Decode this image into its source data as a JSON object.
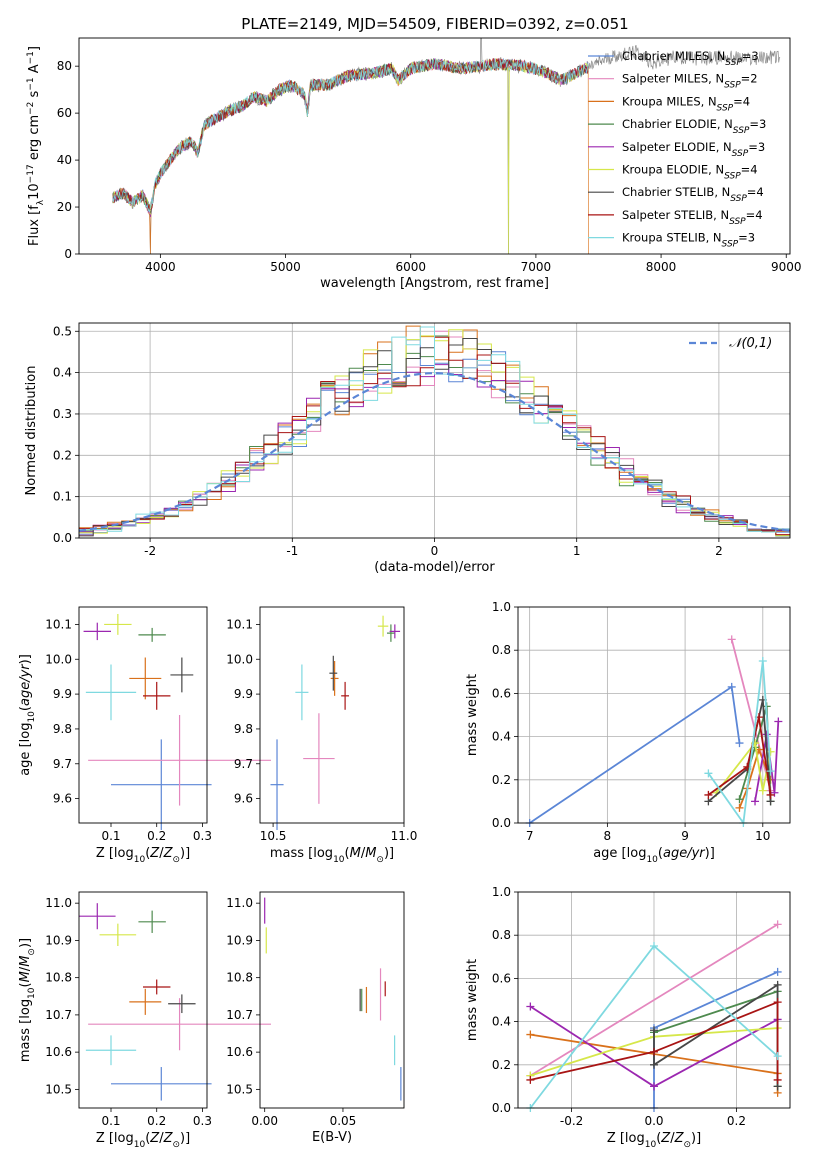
{
  "figure": {
    "title": "PLATE=2149, MJD=54509, FIBERID=0392, z=0.051",
    "colors": [
      "#5b86d6",
      "#e487be",
      "#d9711b",
      "#4e8a4e",
      "#9b27b0",
      "#d6e74a",
      "#474747",
      "#a81414",
      "#7fd9e0"
    ],
    "model_names": [
      "Chabrier MILES",
      "Salpeter MILES",
      "Kroupa MILES",
      "Chabrier ELODIE",
      "Salpeter ELODIE",
      "Kroupa ELODIE",
      "Chabrier STELIB",
      "Salpeter STELIB",
      "Kroupa STELIB"
    ],
    "nssp": [
      3,
      2,
      4,
      3,
      3,
      4,
      4,
      4,
      3
    ],
    "nssp_label": "N",
    "nssp_sub": "SSP"
  },
  "chart_data": [
    {
      "type": "line",
      "panel": "spectrum",
      "title": "PLATE=2149, MJD=54509, FIBERID=0392, z=0.051",
      "xlabel": "wavelength [Angstrom, rest frame]",
      "ylabel_parts": [
        "Flux [f",
        "λ",
        "10",
        "−17",
        " erg cm",
        "−2",
        " s",
        "−1",
        " A",
        "−1",
        "]"
      ],
      "xlim": [
        3350,
        9030
      ],
      "ylim": [
        0,
        92
      ],
      "xticks": [
        4000,
        5000,
        6000,
        7000,
        8000,
        9000
      ],
      "yticks": [
        0,
        20,
        40,
        60,
        80
      ],
      "continuum_points": [
        [
          3620,
          24
        ],
        [
          3700,
          26
        ],
        [
          3780,
          22
        ],
        [
          3860,
          25
        ],
        [
          3920,
          18
        ],
        [
          3960,
          30
        ],
        [
          4000,
          34
        ],
        [
          4080,
          40
        ],
        [
          4150,
          45
        ],
        [
          4250,
          48
        ],
        [
          4300,
          43
        ],
        [
          4350,
          55
        ],
        [
          4450,
          58
        ],
        [
          4550,
          61
        ],
        [
          4650,
          63
        ],
        [
          4750,
          67
        ],
        [
          4850,
          65
        ],
        [
          4950,
          70
        ],
        [
          5050,
          72
        ],
        [
          5150,
          68
        ],
        [
          5175,
          60
        ],
        [
          5200,
          72
        ],
        [
          5350,
          72
        ],
        [
          5500,
          76
        ],
        [
          5700,
          77
        ],
        [
          5850,
          79
        ],
        [
          5900,
          74
        ],
        [
          6000,
          79
        ],
        [
          6200,
          81
        ],
        [
          6400,
          79
        ],
        [
          6563,
          80
        ],
        [
          6700,
          81
        ],
        [
          6900,
          80
        ],
        [
          7050,
          78
        ],
        [
          7200,
          74
        ],
        [
          7400,
          79
        ],
        [
          7600,
          84
        ],
        [
          7800,
          86
        ],
        [
          7950,
          81
        ],
        [
          8100,
          84
        ],
        [
          8300,
          83
        ],
        [
          8500,
          84
        ],
        [
          8700,
          83
        ],
        [
          8900,
          84
        ]
      ],
      "model_cutoffs_angstrom": [
        7420,
        7420,
        7420,
        7420,
        7420,
        7420,
        7420,
        7420,
        7420
      ],
      "data_dropouts_angstrom": [
        3920,
        6780
      ]
    },
    {
      "type": "histogram",
      "panel": "residuals",
      "xlabel": "(data-model)/error",
      "ylabel": "Normed distribution",
      "xlim": [
        -2.5,
        2.5
      ],
      "ylim": [
        0,
        0.52
      ],
      "xticks": [
        -2,
        -1,
        0,
        1,
        2
      ],
      "yticks": [
        0.0,
        0.1,
        0.2,
        0.3,
        0.4,
        0.5
      ],
      "legend": "𝒩(0,1)",
      "legend_position": "upper-right",
      "grid": true,
      "bin_width": 0.1
    },
    {
      "type": "scatter",
      "panel": "age-vs-Z",
      "xlabel": "Z [log10(Z/Z☉)]",
      "ylabel": "age [log10(age/yr)]",
      "xlim": [
        0.03,
        0.31
      ],
      "ylim": [
        9.53,
        10.15
      ],
      "xticks": [
        0.1,
        0.2,
        0.3
      ],
      "yticks": [
        9.6,
        9.7,
        9.8,
        9.9,
        10.0,
        10.1
      ],
      "points": [
        {
          "x": 0.21,
          "y": 9.64,
          "xerr": 0.11,
          "yerr": 0.13
        },
        {
          "x": 0.25,
          "y": 9.71,
          "xerr": 0.2,
          "yerr": 0.13
        },
        {
          "x": 0.175,
          "y": 9.945,
          "xerr": 0.035,
          "yerr": 0.06
        },
        {
          "x": 0.19,
          "y": 10.07,
          "xerr": 0.03,
          "yerr": 0.02
        },
        {
          "x": 0.07,
          "y": 10.08,
          "xerr": 0.03,
          "yerr": 0.025
        },
        {
          "x": 0.115,
          "y": 10.1,
          "xerr": 0.03,
          "yerr": 0.03
        },
        {
          "x": 0.255,
          "y": 9.955,
          "xerr": 0.025,
          "yerr": 0.05
        },
        {
          "x": 0.2,
          "y": 9.895,
          "xerr": 0.03,
          "yerr": 0.04
        },
        {
          "x": 0.1,
          "y": 9.905,
          "xerr": 0.055,
          "yerr": 0.08
        }
      ]
    },
    {
      "type": "scatter",
      "panel": "age-vs-mass",
      "xlabel": "mass [log10(M/M☉)]",
      "ylabel": "",
      "xlim": [
        10.45,
        11.0
      ],
      "ylim": [
        9.53,
        10.15
      ],
      "xticks": [
        10.5,
        11.0
      ],
      "yticks": [
        9.6,
        9.7,
        9.8,
        9.9,
        10.0,
        10.1
      ],
      "points": [
        {
          "x": 10.515,
          "y": 9.64,
          "xerr": 0.025,
          "yerr": 0.13
        },
        {
          "x": 10.675,
          "y": 9.715,
          "xerr": 0.06,
          "yerr": 0.13
        },
        {
          "x": 10.735,
          "y": 9.945,
          "xerr": 0.015,
          "yerr": 0.05
        },
        {
          "x": 10.95,
          "y": 10.075,
          "xerr": 0.015,
          "yerr": 0.025
        },
        {
          "x": 10.965,
          "y": 10.08,
          "xerr": 0.02,
          "yerr": 0.02
        },
        {
          "x": 10.92,
          "y": 10.095,
          "xerr": 0.02,
          "yerr": 0.03
        },
        {
          "x": 10.73,
          "y": 9.96,
          "xerr": 0.015,
          "yerr": 0.05
        },
        {
          "x": 10.775,
          "y": 9.895,
          "xerr": 0.015,
          "yerr": 0.04
        },
        {
          "x": 10.61,
          "y": 9.905,
          "xerr": 0.025,
          "yerr": 0.08
        }
      ]
    },
    {
      "type": "line",
      "panel": "massweight-vs-age",
      "xlabel": "age [log10(age/yr)]",
      "ylabel": "mass weight",
      "xlim": [
        6.85,
        10.35
      ],
      "ylim": [
        0,
        1.0
      ],
      "xticks": [
        7,
        8,
        9,
        10
      ],
      "yticks": [
        0.0,
        0.2,
        0.4,
        0.6,
        0.8,
        1.0
      ],
      "grid": true,
      "series": [
        {
          "x": [
            7.0,
            9.6,
            9.7
          ],
          "y": [
            0.0,
            0.63,
            0.37
          ]
        },
        {
          "x": [
            9.6,
            10.1
          ],
          "y": [
            0.85,
            0.15
          ]
        },
        {
          "x": [
            9.7,
            9.8,
            9.95,
            10.1
          ],
          "y": [
            0.07,
            0.16,
            0.34,
            0.2
          ]
        },
        {
          "x": [
            9.7,
            9.9,
            10.05,
            10.1
          ],
          "y": [
            0.11,
            0.35,
            0.54,
            0.1
          ]
        },
        {
          "x": [
            9.9,
            10.05,
            10.15,
            10.2
          ],
          "y": [
            0.1,
            0.41,
            0.14,
            0.47
          ]
        },
        {
          "x": [
            9.4,
            9.9,
            10.0,
            10.1
          ],
          "y": [
            0.14,
            0.37,
            0.15,
            0.33
          ]
        },
        {
          "x": [
            9.3,
            9.8,
            10.0,
            10.1
          ],
          "y": [
            0.1,
            0.25,
            0.57,
            0.1
          ]
        },
        {
          "x": [
            9.3,
            9.8,
            9.95,
            10.1
          ],
          "y": [
            0.13,
            0.26,
            0.49,
            0.13
          ]
        },
        {
          "x": [
            9.3,
            9.75,
            10.0,
            10.1
          ],
          "y": [
            0.23,
            0.0,
            0.75,
            0.24
          ]
        }
      ]
    },
    {
      "type": "scatter",
      "panel": "mass-vs-Z",
      "xlabel": "Z [log10(Z/Z☉)]",
      "ylabel": "mass [log10(M/M☉)]",
      "xlim": [
        0.03,
        0.31
      ],
      "ylim": [
        10.45,
        11.03
      ],
      "xticks": [
        0.1,
        0.2,
        0.3
      ],
      "yticks": [
        10.5,
        10.6,
        10.7,
        10.8,
        10.9,
        11.0
      ],
      "points": [
        {
          "x": 0.21,
          "y": 10.515,
          "xerr": 0.11,
          "yerr": 0.045
        },
        {
          "x": 0.25,
          "y": 10.675,
          "xerr": 0.2,
          "yerr": 0.07
        },
        {
          "x": 0.175,
          "y": 10.735,
          "xerr": 0.035,
          "yerr": 0.035
        },
        {
          "x": 0.19,
          "y": 10.95,
          "xerr": 0.03,
          "yerr": 0.03
        },
        {
          "x": 0.07,
          "y": 10.965,
          "xerr": 0.04,
          "yerr": 0.035
        },
        {
          "x": 0.115,
          "y": 10.915,
          "xerr": 0.04,
          "yerr": 0.03
        },
        {
          "x": 0.255,
          "y": 10.73,
          "xerr": 0.03,
          "yerr": 0.025
        },
        {
          "x": 0.2,
          "y": 10.775,
          "xerr": 0.03,
          "yerr": 0.02
        },
        {
          "x": 0.1,
          "y": 10.605,
          "xerr": 0.055,
          "yerr": 0.04
        }
      ]
    },
    {
      "type": "scatter",
      "panel": "mass-vs-EBV",
      "xlabel": "E(B-V)",
      "ylabel": "",
      "xlim": [
        -0.003,
        0.089
      ],
      "ylim": [
        10.45,
        11.03
      ],
      "xticks": [
        0.0,
        0.05
      ],
      "yticks": [
        10.5,
        10.6,
        10.7,
        10.8,
        10.9,
        11.0
      ],
      "points": [
        {
          "x": 0.087,
          "y": 10.515,
          "xerr": 0,
          "yerr": 0.045
        },
        {
          "x": 0.074,
          "y": 10.755,
          "xerr": 0,
          "yerr": 0.07
        },
        {
          "x": 0.065,
          "y": 10.74,
          "xerr": 0,
          "yerr": 0.035
        },
        {
          "x": 0.062,
          "y": 10.74,
          "xerr": 0,
          "yerr": 0.03
        },
        {
          "x": 0.0,
          "y": 10.98,
          "xerr": 0,
          "yerr": 0.035
        },
        {
          "x": 0.001,
          "y": 10.9,
          "xerr": 0,
          "yerr": 0.035
        },
        {
          "x": 0.061,
          "y": 10.74,
          "xerr": 0,
          "yerr": 0.03
        },
        {
          "x": 0.077,
          "y": 10.77,
          "xerr": 0,
          "yerr": 0.02
        },
        {
          "x": 0.083,
          "y": 10.605,
          "xerr": 0,
          "yerr": 0.04
        }
      ]
    },
    {
      "type": "line",
      "panel": "massweight-vs-Z",
      "xlabel": "Z [log10(Z/Z☉)]",
      "ylabel": "mass weight",
      "xlim": [
        -0.33,
        0.33
      ],
      "ylim": [
        0,
        1.0
      ],
      "xticks": [
        -0.2,
        0.0,
        0.2
      ],
      "yticks": [
        0.0,
        0.2,
        0.4,
        0.6,
        0.8,
        1.0
      ],
      "grid": true,
      "series": [
        {
          "x": [
            0.0,
            0.0,
            0.3
          ],
          "y": [
            0.0,
            0.37,
            0.63
          ]
        },
        {
          "x": [
            -0.3,
            0.3
          ],
          "y": [
            0.15,
            0.85
          ]
        },
        {
          "x": [
            -0.3,
            0.3,
            0.3
          ],
          "y": [
            0.34,
            0.16,
            0.07
          ]
        },
        {
          "x": [
            0.0,
            0.3,
            0.3
          ],
          "y": [
            0.35,
            0.54,
            0.1
          ]
        },
        {
          "x": [
            -0.3,
            0.0,
            0.3
          ],
          "y": [
            0.47,
            0.1,
            0.41
          ]
        },
        {
          "x": [
            -0.3,
            0.0,
            0.3
          ],
          "y": [
            0.15,
            0.33,
            0.37
          ]
        },
        {
          "x": [
            0.0,
            0.0,
            0.3,
            0.3
          ],
          "y": [
            0.36,
            0.2,
            0.57,
            0.1
          ]
        },
        {
          "x": [
            -0.3,
            0.0,
            0.3,
            0.3
          ],
          "y": [
            0.13,
            0.26,
            0.49,
            0.13
          ]
        },
        {
          "x": [
            -0.3,
            0.0,
            0.3
          ],
          "y": [
            0.0,
            0.75,
            0.24
          ]
        }
      ]
    }
  ]
}
